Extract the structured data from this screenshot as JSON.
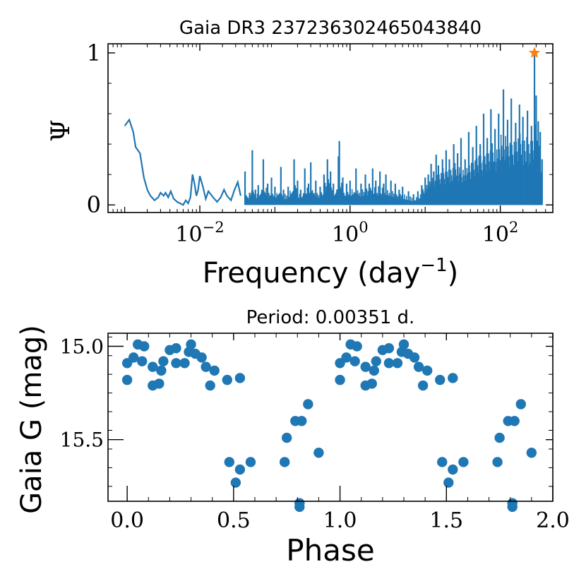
{
  "colors": {
    "series": "#1f77b4",
    "peak": "#ff7f0e",
    "axis": "#000000"
  },
  "chart_data": [
    {
      "type": "line",
      "title": "Gaia DR3 2372363024650438​40",
      "title_text": "Gaia DR3 237236302465043840",
      "xlabel": "Frequency (day",
      "xlabel_sup": "−1",
      "xlabel_close": ")",
      "ylabel": "Ψ",
      "xscale": "log",
      "xlim": [
        0.0006,
        500
      ],
      "ylim": [
        -0.05,
        1.06
      ],
      "xticks": [
        {
          "value": 0.01,
          "base": "10",
          "exp": "−2"
        },
        {
          "value": 1,
          "base": "10",
          "exp": "0"
        },
        {
          "value": 100,
          "base": "10",
          "exp": "2"
        }
      ],
      "yticks": [
        {
          "value": 0,
          "label": "0"
        },
        {
          "value": 1,
          "label": "1"
        }
      ],
      "low_freq_curve": [
        [
          0.001,
          0.52
        ],
        [
          0.00115,
          0.56
        ],
        [
          0.0013,
          0.48
        ],
        [
          0.0014,
          0.38
        ],
        [
          0.0016,
          0.34
        ],
        [
          0.0018,
          0.18
        ],
        [
          0.002,
          0.1
        ],
        [
          0.0022,
          0.06
        ],
        [
          0.0025,
          0.03
        ],
        [
          0.0028,
          0.05
        ],
        [
          0.003,
          0.08
        ],
        [
          0.0033,
          0.06
        ],
        [
          0.0035,
          0.08
        ],
        [
          0.0038,
          0.05
        ],
        [
          0.0041,
          0.09
        ],
        [
          0.0045,
          0.04
        ],
        [
          0.005,
          0.02
        ],
        [
          0.0055,
          0.01
        ],
        [
          0.006,
          0.0
        ],
        [
          0.0065,
          0.03
        ],
        [
          0.007,
          0.01
        ],
        [
          0.0075,
          0.05
        ],
        [
          0.008,
          0.2
        ],
        [
          0.0085,
          0.14
        ],
        [
          0.009,
          0.06
        ],
        [
          0.0095,
          0.1
        ],
        [
          0.01,
          0.19
        ],
        [
          0.011,
          0.12
        ],
        [
          0.012,
          0.04
        ],
        [
          0.013,
          0.09
        ],
        [
          0.015,
          0.05
        ],
        [
          0.017,
          0.02
        ],
        [
          0.019,
          0.05
        ],
        [
          0.021,
          0.1
        ],
        [
          0.023,
          0.06
        ],
        [
          0.026,
          0.03
        ],
        [
          0.029,
          0.1
        ],
        [
          0.032,
          0.15
        ],
        [
          0.035,
          0.06
        ]
      ],
      "spikes": [
        [
          0.04,
          0.22
        ],
        [
          0.046,
          0.08
        ],
        [
          0.05,
          0.36
        ],
        [
          0.055,
          0.1
        ],
        [
          0.06,
          0.13
        ],
        [
          0.07,
          0.3
        ],
        [
          0.08,
          0.14
        ],
        [
          0.09,
          0.18
        ],
        [
          0.1,
          0.12
        ],
        [
          0.12,
          0.25
        ],
        [
          0.13,
          0.1
        ],
        [
          0.15,
          0.12
        ],
        [
          0.18,
          0.3
        ],
        [
          0.2,
          0.16
        ],
        [
          0.22,
          0.1
        ],
        [
          0.25,
          0.24
        ],
        [
          0.28,
          0.14
        ],
        [
          0.3,
          0.28
        ],
        [
          0.35,
          0.16
        ],
        [
          0.4,
          0.12
        ],
        [
          0.45,
          0.2
        ],
        [
          0.5,
          0.3
        ],
        [
          0.55,
          0.22
        ],
        [
          0.6,
          0.14
        ],
        [
          0.7,
          0.32
        ],
        [
          0.72,
          0.42
        ],
        [
          0.8,
          0.18
        ],
        [
          0.9,
          0.14
        ],
        [
          1.0,
          0.16
        ],
        [
          1.2,
          0.24
        ],
        [
          1.4,
          0.14
        ],
        [
          1.6,
          0.2
        ],
        [
          1.8,
          0.14
        ],
        [
          2.0,
          0.24
        ],
        [
          2.2,
          0.16
        ],
        [
          2.5,
          0.22
        ],
        [
          2.8,
          0.14
        ],
        [
          3.0,
          0.2
        ],
        [
          3.5,
          0.16
        ],
        [
          4.0,
          0.14
        ],
        [
          4.5,
          0.1
        ],
        [
          5.0,
          0.12
        ],
        [
          6.0,
          0.09
        ],
        [
          7.0,
          0.07
        ],
        [
          8.0,
          0.09
        ],
        [
          9.0,
          0.13
        ],
        [
          10.0,
          0.18
        ],
        [
          11.0,
          0.2
        ],
        [
          12.0,
          0.27
        ],
        [
          13.0,
          0.22
        ],
        [
          14.0,
          0.33
        ],
        [
          15.0,
          0.26
        ],
        [
          17.0,
          0.3
        ],
        [
          19.0,
          0.36
        ],
        [
          21.0,
          0.3
        ],
        [
          24.0,
          0.4
        ],
        [
          27.0,
          0.34
        ],
        [
          30.0,
          0.44
        ],
        [
          34.0,
          0.3
        ],
        [
          38.0,
          0.48
        ],
        [
          43.0,
          0.38
        ],
        [
          48.0,
          0.52
        ],
        [
          54.0,
          0.4
        ],
        [
          60.0,
          0.6
        ],
        [
          67.0,
          0.44
        ],
        [
          75.0,
          0.63
        ],
        [
          85.0,
          0.5
        ],
        [
          95.0,
          0.6
        ],
        [
          110.0,
          0.76
        ],
        [
          125.0,
          0.56
        ],
        [
          140.0,
          0.7
        ],
        [
          160.0,
          0.54
        ],
        [
          180.0,
          0.66
        ],
        [
          200.0,
          0.58
        ],
        [
          230.0,
          0.62
        ],
        [
          260.0,
          0.52
        ],
        [
          285.0,
          1.0
        ],
        [
          300.0,
          0.72
        ],
        [
          320.0,
          0.55
        ],
        [
          340.0,
          0.48
        ],
        [
          360.0,
          0.3
        ]
      ],
      "peak": {
        "x": 285.0,
        "y": 1.0,
        "marker": "star"
      }
    },
    {
      "type": "scatter",
      "title": "Period:  0.00351 d.",
      "xlabel": "Phase",
      "ylabel": "Gaia G (mag)",
      "xlim": [
        -0.09,
        2.0
      ],
      "ylim": [
        15.83,
        14.93
      ],
      "y_inverted": true,
      "xticks": [
        {
          "value": 0.0,
          "label": "0.0"
        },
        {
          "value": 0.5,
          "label": "0.5"
        },
        {
          "value": 1.0,
          "label": "1.0"
        },
        {
          "value": 1.5,
          "label": "1.5"
        },
        {
          "value": 2.0,
          "label": "2.0"
        }
      ],
      "yticks": [
        {
          "value": 15.0,
          "label": "15.0"
        },
        {
          "value": 15.5,
          "label": "15.5"
        }
      ],
      "points": [
        [
          0.0,
          15.09
        ],
        [
          0.0,
          15.18
        ],
        [
          0.03,
          15.06
        ],
        [
          0.05,
          14.99
        ],
        [
          0.07,
          15.08
        ],
        [
          0.08,
          15.0
        ],
        [
          0.12,
          15.21
        ],
        [
          0.12,
          15.11
        ],
        [
          0.15,
          15.2
        ],
        [
          0.16,
          15.13
        ],
        [
          0.17,
          15.08
        ],
        [
          0.2,
          15.02
        ],
        [
          0.23,
          15.01
        ],
        [
          0.23,
          15.09
        ],
        [
          0.27,
          15.09
        ],
        [
          0.29,
          15.03
        ],
        [
          0.3,
          14.99
        ],
        [
          0.32,
          15.04
        ],
        [
          0.35,
          15.06
        ],
        [
          0.37,
          15.11
        ],
        [
          0.39,
          15.21
        ],
        [
          0.41,
          15.13
        ],
        [
          0.47,
          15.18
        ],
        [
          0.48,
          15.62
        ],
        [
          0.51,
          15.73
        ],
        [
          0.53,
          15.17
        ],
        [
          0.53,
          15.66
        ],
        [
          0.58,
          15.62
        ],
        [
          0.74,
          15.62
        ],
        [
          0.75,
          15.49
        ],
        [
          0.79,
          15.4
        ],
        [
          0.81,
          15.86
        ],
        [
          0.81,
          15.84
        ],
        [
          0.82,
          15.4
        ],
        [
          0.85,
          15.31
        ],
        [
          0.9,
          15.57
        ]
      ]
    }
  ]
}
